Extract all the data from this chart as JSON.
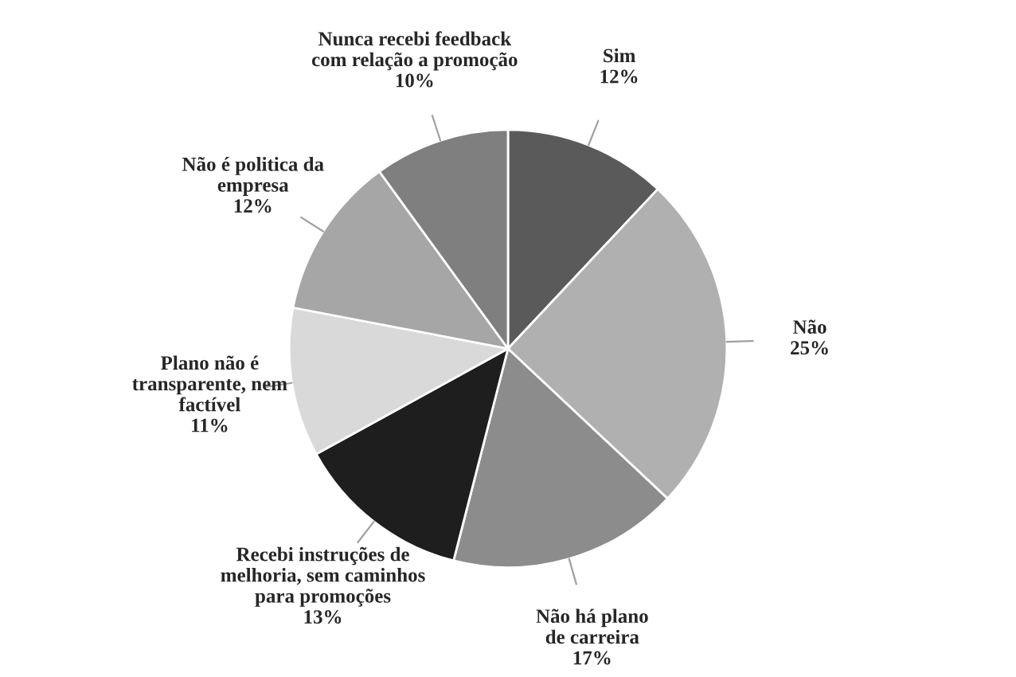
{
  "chart_data": {
    "type": "pie",
    "categories": [
      "Sim",
      "Não",
      "Não há plano de carreira",
      "Recebi instruções de melhoria, sem caminhos para promoções",
      "Plano não é transparente, nem factível",
      "Não é politica da empresa",
      "Nunca recebi feedback com relação a promoção"
    ],
    "values": [
      12,
      25,
      17,
      13,
      11,
      12,
      10
    ],
    "value_labels": [
      "12%",
      "25%",
      "17%",
      "13%",
      "11%",
      "12%",
      "10%"
    ],
    "colors": [
      "#5a5a5a",
      "#b0b0b0",
      "#8c8c8c",
      "#1e1e1e",
      "#d9d9d9",
      "#a6a6a6",
      "#7f7f7f"
    ],
    "legend": false
  }
}
